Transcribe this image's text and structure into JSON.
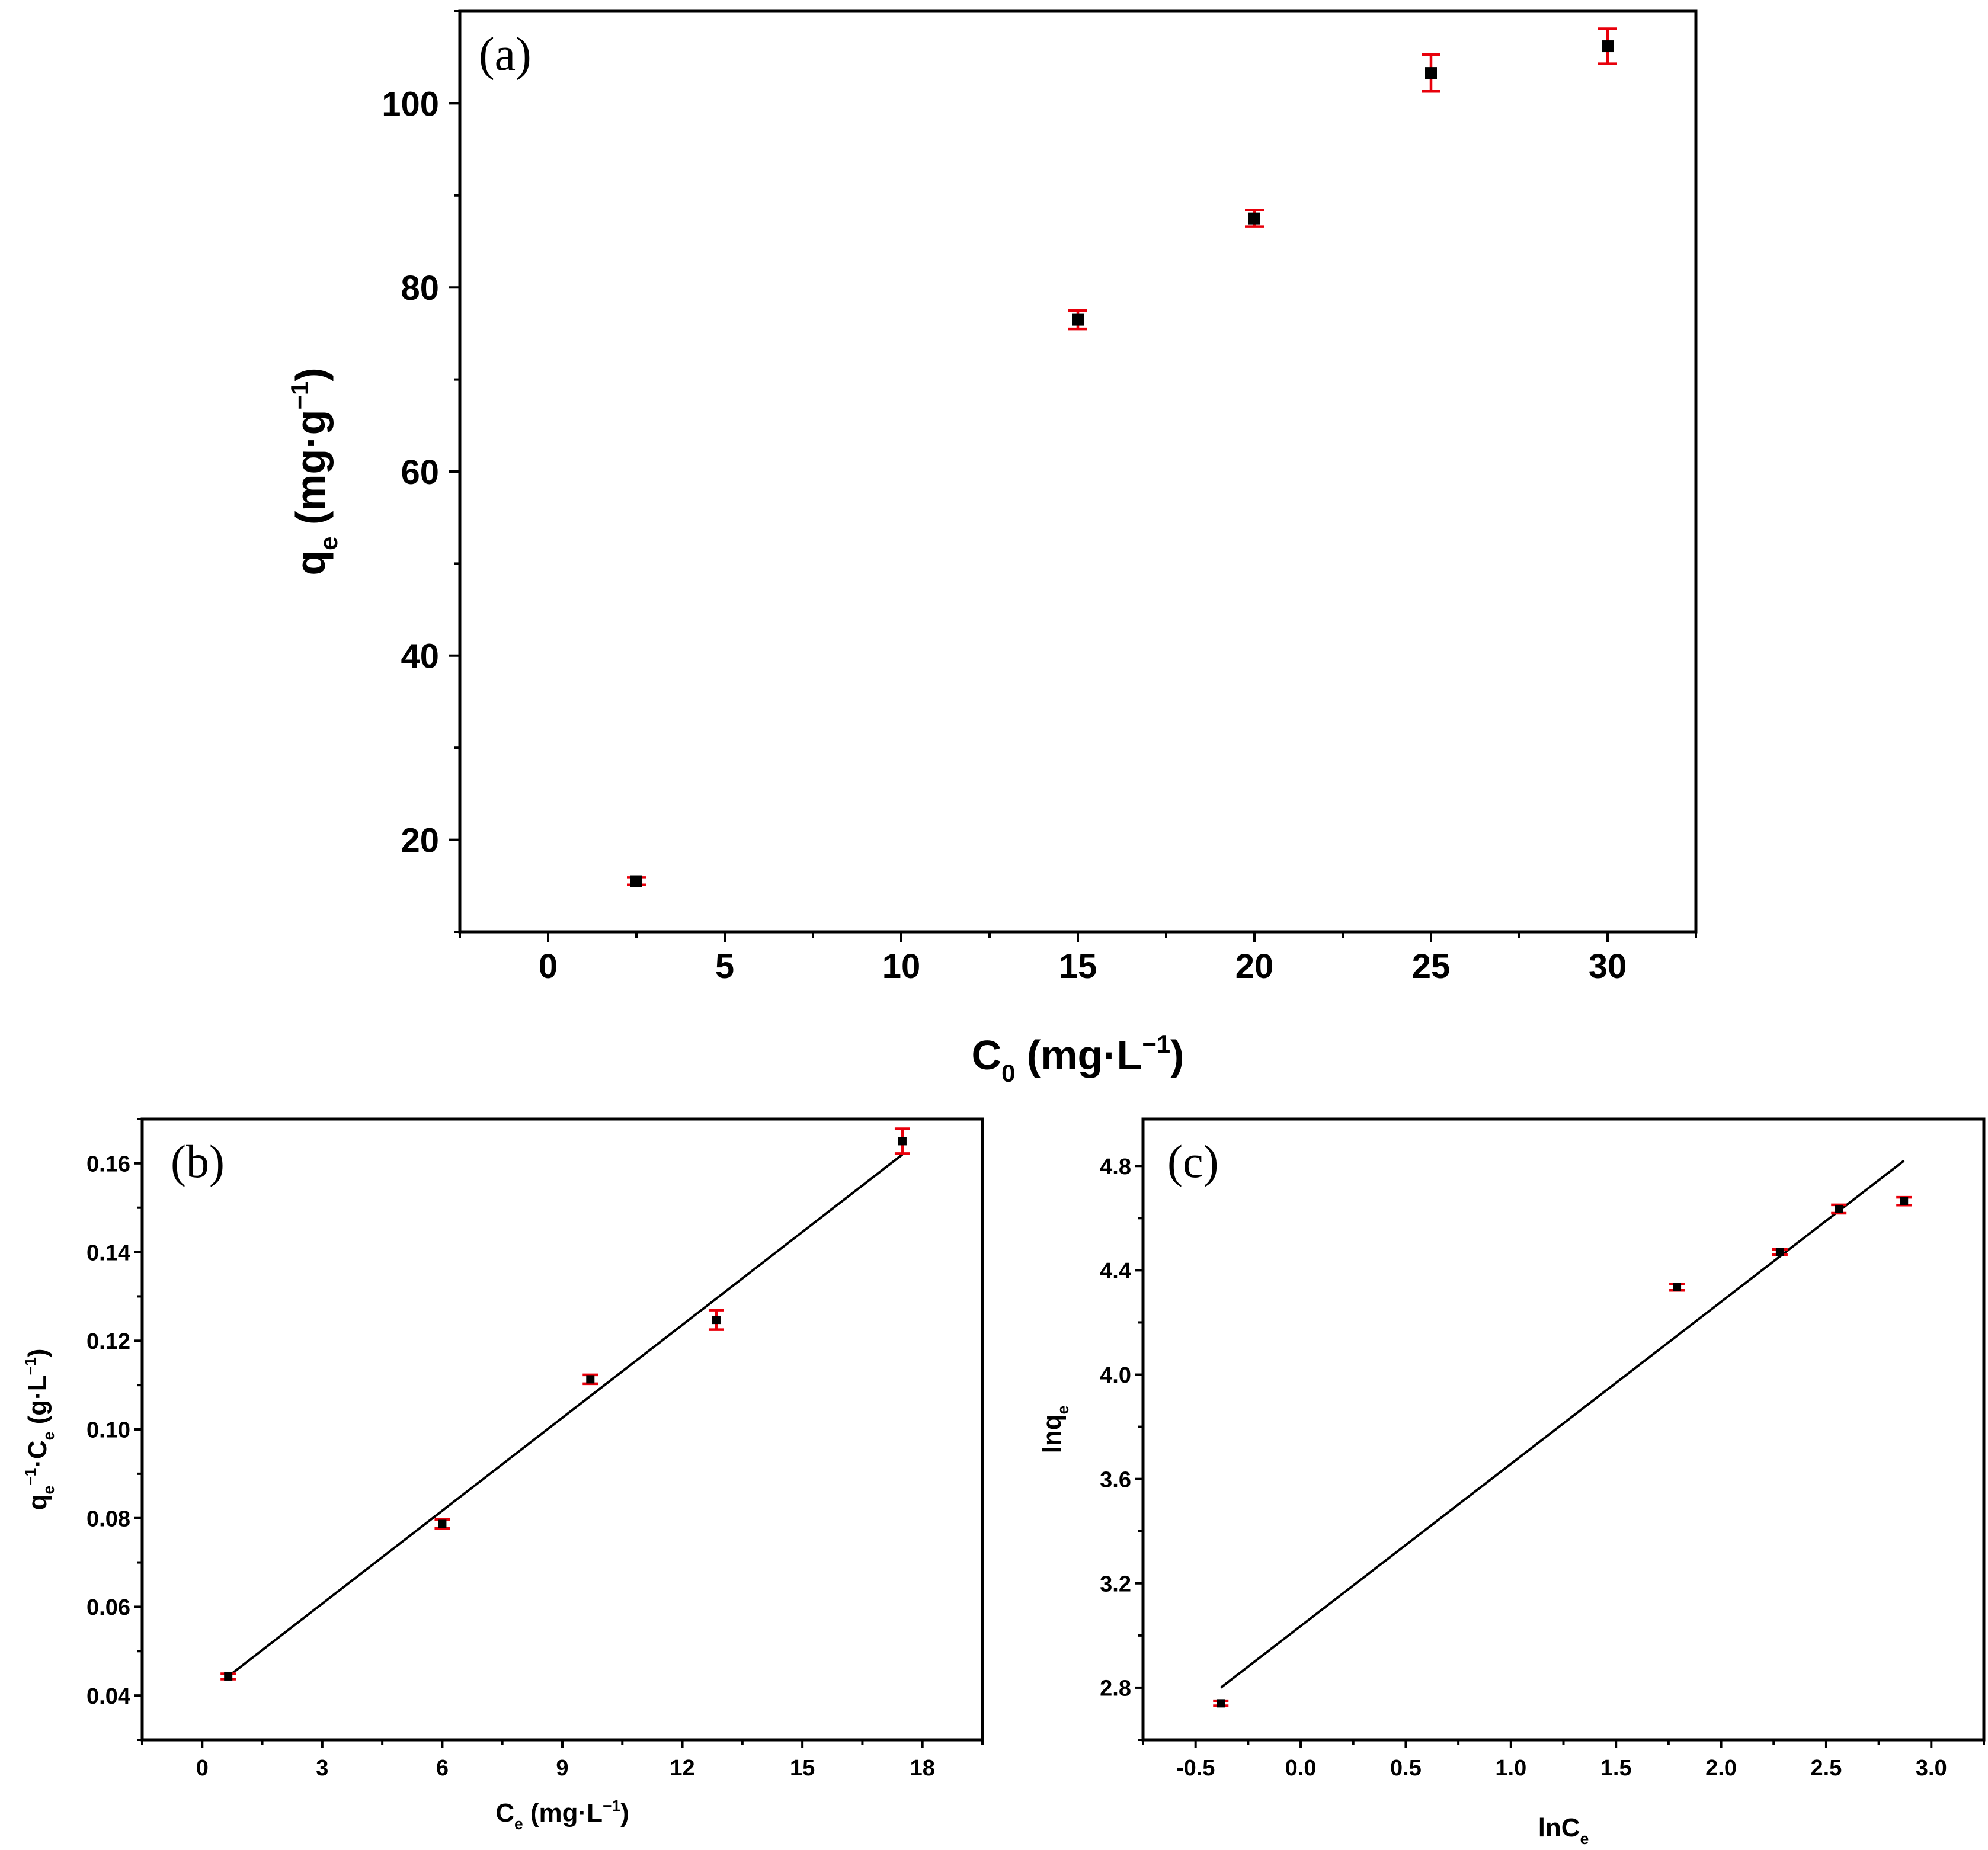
{
  "colors": {
    "marker": "#000000",
    "error_bar": "#e8000b",
    "fit_line": "#000000",
    "axis": "#000000"
  },
  "chart_data": [
    {
      "id": "a",
      "type": "scatter",
      "panel_label": "(a)",
      "xlabel": {
        "main": "C",
        "sub": "0",
        "unit_pre": " (mg·L",
        "sup": "−1",
        "unit_post": ")"
      },
      "ylabel": {
        "main": "q",
        "sub": "e",
        "unit_pre": " (mg·g",
        "sup": "−1",
        "unit_post": ")"
      },
      "xlim": [
        -2.5,
        32.5
      ],
      "ylim": [
        10,
        110
      ],
      "xticks": [
        0,
        5,
        10,
        15,
        20,
        25,
        30
      ],
      "yticks": [
        20,
        40,
        60,
        80,
        100
      ],
      "xtick_labels": [
        "0",
        "5",
        "10",
        "15",
        "20",
        "25",
        "30"
      ],
      "ytick_labels": [
        "20",
        "40",
        "60",
        "80",
        "100"
      ],
      "points": [
        {
          "x": 2.5,
          "y": 15.5,
          "err": 0.4
        },
        {
          "x": 15,
          "y": 76.5,
          "err": 1.0
        },
        {
          "x": 20,
          "y": 87.5,
          "err": 0.9
        },
        {
          "x": 25,
          "y": 103.3,
          "err": 2.0
        },
        {
          "x": 30,
          "y": 106.2,
          "err": 1.9
        }
      ]
    },
    {
      "id": "b",
      "type": "scatter",
      "panel_label": "(b)",
      "xlabel": {
        "main": "C",
        "sub": "e",
        "unit_pre": " (mg·L",
        "sup": "−1",
        "unit_post": ")"
      },
      "ylabel": {
        "main": "q",
        "sub": "e",
        "sup1": "−1",
        "mid": "·C",
        "sub2": "e",
        "unit_pre": " (g·L",
        "sup": "−1",
        "unit_post": ")"
      },
      "xlim": [
        -1.5,
        19.5
      ],
      "ylim": [
        0.03,
        0.17
      ],
      "xticks": [
        0,
        3,
        6,
        9,
        12,
        15,
        18
      ],
      "yticks": [
        0.04,
        0.06,
        0.08,
        0.1,
        0.12,
        0.14,
        0.16
      ],
      "xtick_labels": [
        "0",
        "3",
        "6",
        "9",
        "12",
        "15",
        "18"
      ],
      "ytick_labels": [
        "0.04",
        "0.06",
        "0.08",
        "0.10",
        "0.12",
        "0.14",
        "0.16"
      ],
      "points": [
        {
          "x": 0.65,
          "y": 0.0443,
          "err": 0.0006
        },
        {
          "x": 6.0,
          "y": 0.0787,
          "err": 0.001
        },
        {
          "x": 9.7,
          "y": 0.1113,
          "err": 0.001
        },
        {
          "x": 12.85,
          "y": 0.1247,
          "err": 0.0022
        },
        {
          "x": 17.5,
          "y": 0.165,
          "err": 0.0028
        }
      ],
      "fit_line": {
        "x": [
          0.65,
          17.5
        ],
        "y": [
          0.0443,
          0.162
        ]
      }
    },
    {
      "id": "c",
      "type": "scatter",
      "panel_label": "(c)",
      "xlabel": {
        "main": "lnC",
        "sub": "e"
      },
      "ylabel": {
        "main": "lnq",
        "sub": "e"
      },
      "xlim": [
        -0.75,
        3.25
      ],
      "ylim": [
        2.6,
        4.98
      ],
      "xticks": [
        -0.5,
        0.0,
        0.5,
        1.0,
        1.5,
        2.0,
        2.5,
        3.0
      ],
      "yticks": [
        2.8,
        3.2,
        3.6,
        4.0,
        4.4,
        4.8
      ],
      "xtick_labels": [
        "-0.5",
        "0.0",
        "0.5",
        "1.0",
        "1.5",
        "2.0",
        "2.5",
        "3.0"
      ],
      "ytick_labels": [
        "2.8",
        "3.2",
        "3.6",
        "4.0",
        "4.4",
        "4.8"
      ],
      "points": [
        {
          "x": -0.38,
          "y": 2.74,
          "err": 0.008
        },
        {
          "x": 1.79,
          "y": 4.335,
          "err": 0.012
        },
        {
          "x": 2.28,
          "y": 4.47,
          "err": 0.01
        },
        {
          "x": 2.56,
          "y": 4.635,
          "err": 0.016
        },
        {
          "x": 2.87,
          "y": 4.665,
          "err": 0.015
        }
      ],
      "fit_line": {
        "x": [
          -0.38,
          2.87
        ],
        "y": [
          2.8,
          4.82
        ]
      }
    }
  ]
}
